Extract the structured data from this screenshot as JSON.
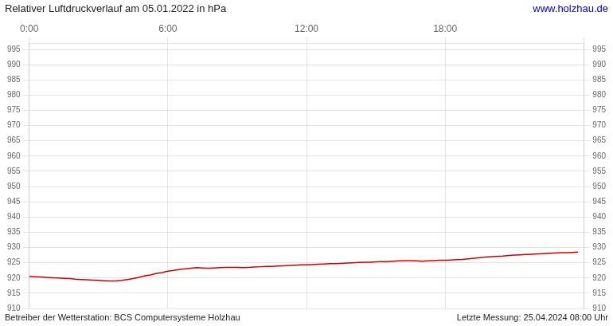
{
  "chart_data": {
    "type": "line",
    "title": "Relativer Luftdruckverlauf am 05.01.2022 in hPa",
    "annotations": [
      {
        "text": "www.holzhau.de",
        "color": "#0000cc"
      },
      {
        "text": "Betreiber der Wetterstation: BCS Computersysteme Holzhau"
      },
      {
        "text": "Letzte Messung: 25.04.2024 08:00 Uhr"
      }
    ],
    "x": [
      0.0,
      0.25,
      0.5,
      0.75,
      1.0,
      1.25,
      1.5,
      1.75,
      2.0,
      2.25,
      2.5,
      2.75,
      3.0,
      3.25,
      3.5,
      3.75,
      4.0,
      4.25,
      4.5,
      4.75,
      5.0,
      5.25,
      5.5,
      5.75,
      6.0,
      6.25,
      6.5,
      6.75,
      7.0,
      7.25,
      7.5,
      7.75,
      8.0,
      8.25,
      8.5,
      8.75,
      9.0,
      9.25,
      9.5,
      9.75,
      10.0,
      10.25,
      10.5,
      10.75,
      11.0,
      11.25,
      11.5,
      11.75,
      12.0,
      12.25,
      12.5,
      12.75,
      13.0,
      13.25,
      13.5,
      13.75,
      14.0,
      14.25,
      14.5,
      14.75,
      15.0,
      15.25,
      15.5,
      15.75,
      16.0,
      16.25,
      16.5,
      16.75,
      17.0,
      17.25,
      17.5,
      17.75,
      18.0,
      18.25,
      18.5,
      18.75,
      19.0,
      19.25,
      19.5,
      19.75,
      20.0,
      20.25,
      20.5,
      20.75,
      21.0,
      21.25,
      21.5,
      21.75,
      22.0,
      22.25,
      22.5,
      22.75,
      23.0,
      23.25,
      23.5,
      23.75
    ],
    "values": [
      920.5,
      920.4,
      920.3,
      920.2,
      920.1,
      920.0,
      919.9,
      919.8,
      919.6,
      919.5,
      919.4,
      919.3,
      919.2,
      919.1,
      919.0,
      919.0,
      919.2,
      919.5,
      919.8,
      920.2,
      920.7,
      921.0,
      921.5,
      921.8,
      922.2,
      922.5,
      922.8,
      923.0,
      923.2,
      923.4,
      923.3,
      923.2,
      923.3,
      923.4,
      923.5,
      923.5,
      923.5,
      923.4,
      923.5,
      923.6,
      923.7,
      923.8,
      923.8,
      923.9,
      924.0,
      924.1,
      924.2,
      924.3,
      924.3,
      924.4,
      924.5,
      924.6,
      924.7,
      924.7,
      924.8,
      924.9,
      925.0,
      925.1,
      925.2,
      925.2,
      925.3,
      925.4,
      925.4,
      925.5,
      925.6,
      925.7,
      925.7,
      925.6,
      925.5,
      925.6,
      925.7,
      925.8,
      925.8,
      925.9,
      926.0,
      926.1,
      926.3,
      926.5,
      926.7,
      926.9,
      927.0,
      927.1,
      927.2,
      927.4,
      927.5,
      927.6,
      927.7,
      927.8,
      927.9,
      928.0,
      928.1,
      928.2,
      928.3,
      928.3,
      928.4,
      928.5
    ],
    "color": "#cc0000",
    "xlim": [
      0,
      24
    ],
    "xticks": [
      {
        "value": 0,
        "label": "0:00"
      },
      {
        "value": 6,
        "label": "6:00"
      },
      {
        "value": 12,
        "label": "12:00"
      },
      {
        "value": 18,
        "label": "18:00"
      },
      {
        "value": 24,
        "label": null
      }
    ],
    "ylim": [
      910,
      997
    ],
    "y2lim": [
      910,
      997
    ],
    "yticks": [
      910,
      915,
      920,
      925,
      930,
      935,
      940,
      945,
      950,
      955,
      960,
      965,
      970,
      975,
      980,
      985,
      990,
      995
    ],
    "y2ticks": [
      910,
      915,
      920,
      925,
      930,
      935,
      940,
      945,
      950,
      955,
      960,
      965,
      970,
      975,
      980,
      985,
      990,
      995
    ],
    "grid": true
  }
}
